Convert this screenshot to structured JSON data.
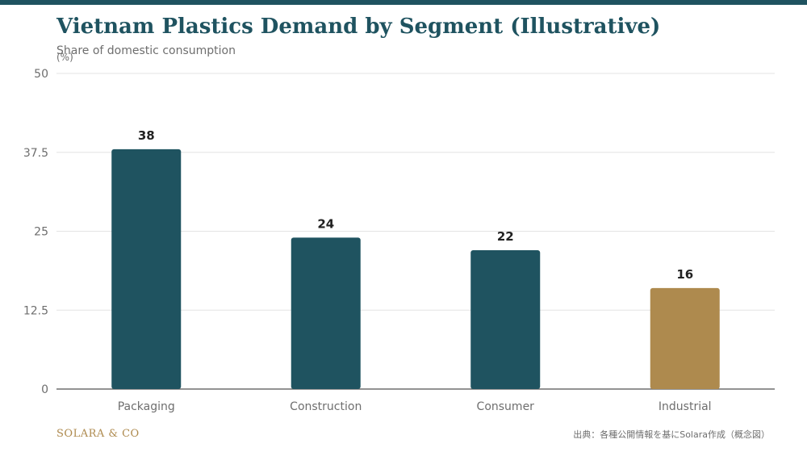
{
  "header": {
    "title": "Vietnam Plastics Demand by Segment (Illustrative)",
    "subtitle": "Share of domestic consumption",
    "unit": "(%)"
  },
  "footer": {
    "brand": "SOLARA & CO",
    "source": "出典：各種公開情報を基にSolara作成（概念図）"
  },
  "colors": {
    "primary": "#1f5360",
    "highlight": "#ae8a4e"
  },
  "chart_data": {
    "type": "bar",
    "title": "Vietnam Plastics Demand by Segment (Illustrative)",
    "subtitle": "Share of domestic consumption",
    "ylabel": "(%)",
    "xlabel": "",
    "categories": [
      "Packaging",
      "Construction",
      "Consumer",
      "Industrial"
    ],
    "values": [
      38,
      24,
      22,
      16
    ],
    "value_labels": [
      "38",
      "24",
      "22",
      "16"
    ],
    "highlighted": [
      "Industrial"
    ],
    "ylim": [
      0,
      50
    ],
    "yticks": [
      0,
      12.5,
      25,
      37.5,
      50
    ],
    "ytick_labels": [
      "0",
      "12.5",
      "25",
      "37.5",
      "50"
    ],
    "grid": true,
    "legend": "none"
  }
}
